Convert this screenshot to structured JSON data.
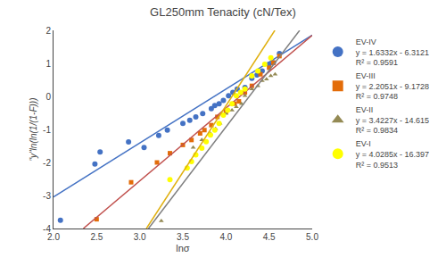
{
  "chart_data": {
    "type": "scatter",
    "title": "GL250mm Tenacity (cN/Tex)",
    "x_label": "lnσ",
    "y_label": "\"y\"ln(ln(1/(1-F)))",
    "xlim": [
      2.0,
      5.0
    ],
    "ylim": [
      -4,
      2
    ],
    "xticks": [
      {
        "value": 2.0,
        "label": "2.0"
      },
      2.5,
      {
        "value": 3.0,
        "label": "3.0"
      },
      3.5,
      {
        "value": 4.0,
        "label": "4.0"
      },
      4.5,
      {
        "value": 5.0,
        "label": "5.0"
      }
    ],
    "yticks": [
      -4,
      -3,
      -2,
      -1,
      0,
      1,
      2
    ],
    "grid": false,
    "legend": "right",
    "series": [
      {
        "name": "EV-IV",
        "equation": "y = 1.6332x - 6.3121",
        "r2": "R² = 0.9591",
        "type": "scatter",
        "marker": "circle",
        "color": "#4472C4",
        "x": [
          2.08,
          2.48,
          2.54,
          2.87,
          3.05,
          3.22,
          3.32,
          3.5,
          3.58,
          3.65,
          3.73,
          3.83,
          3.87,
          3.92,
          3.97,
          4.03,
          4.08,
          4.13,
          4.22,
          4.3,
          4.36,
          4.42,
          4.5,
          4.55,
          4.62
        ],
        "values": [
          -3.75,
          -2.05,
          -1.68,
          -1.38,
          -1.55,
          -1.18,
          -1.02,
          -0.82,
          -0.72,
          -0.62,
          -0.52,
          -0.37,
          -0.28,
          -0.22,
          -0.12,
          0.02,
          0.12,
          0.22,
          0.27,
          0.55,
          0.65,
          0.77,
          0.97,
          1.02,
          1.3
        ]
      },
      {
        "type": "line",
        "color": "#4472C4",
        "x": [
          2.0,
          5.0
        ],
        "values": [
          -3.0457,
          1.8539
        ]
      },
      {
        "name": "EV-III",
        "equation": "y = 2.2051x - 9.1728",
        "r2": "R² = 0.9748",
        "type": "scatter",
        "marker": "square",
        "color": "#E36C09",
        "x": [
          2.5,
          2.9,
          3.2,
          3.35,
          3.5,
          3.6,
          3.7,
          3.75,
          3.83,
          3.9,
          4.0,
          4.1,
          4.15,
          4.22,
          4.3,
          4.4,
          4.5,
          4.55,
          4.62
        ],
        "values": [
          -3.72,
          -2.6,
          -2.0,
          -1.72,
          -1.47,
          -1.32,
          -1.12,
          -1.02,
          -0.87,
          -0.62,
          -0.47,
          -0.22,
          -0.15,
          0.12,
          0.32,
          0.67,
          0.87,
          1.02,
          1.22
        ]
      },
      {
        "type": "line",
        "color": "#C0504D",
        "x": [
          2.3458,
          5.0
        ],
        "values": [
          -4,
          1.8527
        ]
      },
      {
        "name": "EV-II",
        "equation": "y = 3.4227x - 14.615",
        "r2": "R² = 0.9834",
        "type": "scatter",
        "marker": "triangle-up",
        "color": "#948A54",
        "x": [
          3.25,
          3.62,
          3.72,
          3.82,
          3.88,
          3.93,
          4.0,
          4.07,
          4.12,
          4.18,
          4.22,
          4.3,
          4.37,
          4.42,
          4.47,
          4.52,
          4.57
        ],
        "values": [
          -3.77,
          -1.55,
          -1.32,
          -1.12,
          -0.98,
          -0.82,
          -0.52,
          -0.42,
          -0.32,
          -0.22,
          0.02,
          0.22,
          0.32,
          0.47,
          0.52,
          0.62,
          0.67
        ]
      },
      {
        "type": "line",
        "color": "#808080",
        "x": [
          3.1014,
          4.8544
        ],
        "values": [
          -4,
          2
        ]
      },
      {
        "name": "EV-I",
        "equation": "y = 4.0285x - 16.397",
        "r2": "R² = 0.9513",
        "type": "scatter",
        "marker": "circle",
        "color": "#FFFF00",
        "x": [
          3.35,
          3.55,
          3.6,
          3.65,
          3.72,
          3.77,
          3.82,
          3.87,
          3.92,
          3.97,
          4.02,
          4.07,
          4.12,
          4.17,
          4.22,
          4.3,
          4.37,
          4.45,
          4.52
        ],
        "values": [
          -2.52,
          -2.17,
          -1.97,
          -1.77,
          -1.57,
          -1.37,
          -1.17,
          -1.02,
          -0.82,
          -0.57,
          -0.42,
          -0.22,
          0.02,
          0.12,
          0.22,
          0.62,
          0.77,
          0.97,
          1.17
        ]
      },
      {
        "type": "line",
        "color": "#E0B010",
        "x": [
          3.0773,
          4.5667
        ],
        "values": [
          -4,
          2
        ]
      }
    ]
  }
}
